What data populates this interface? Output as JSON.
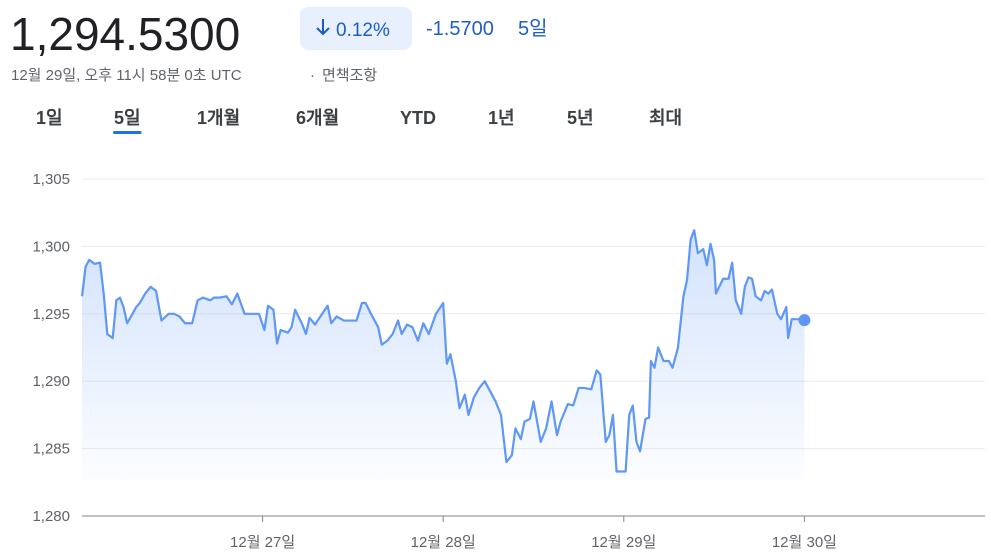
{
  "header": {
    "price": "1,294.5300",
    "change_pct": "0.12%",
    "change": "-1.5700",
    "period": "5일",
    "timestamp": "12월 29일, 오후 11시 58분 0초 UTC",
    "separator": "·",
    "disclaimer": "면책조항"
  },
  "tabs": [
    "1일",
    "5일",
    "1개월",
    "6개월",
    "YTD",
    "1년",
    "5년",
    "최대"
  ],
  "selected_tab": 1,
  "chart_data": {
    "type": "line",
    "color": "#5e97f6",
    "grid": true,
    "xlim": [
      26,
      31
    ],
    "xticks": [
      {
        "value": 27,
        "label": "12월 27일"
      },
      {
        "value": 28,
        "label": "12월 28일"
      },
      {
        "value": 29,
        "label": "12월 29일"
      },
      {
        "value": 30,
        "label": "12월 30일"
      }
    ],
    "ylim": [
      1280,
      1305
    ],
    "yticks": [
      {
        "value": 1280,
        "label": "1,280"
      },
      {
        "value": 1285,
        "label": "1,285"
      },
      {
        "value": 1290,
        "label": "1,290"
      },
      {
        "value": 1295,
        "label": "1,295"
      },
      {
        "value": 1300,
        "label": "1,300"
      },
      {
        "value": 1305,
        "label": "1,305"
      }
    ],
    "x": [
      26.0,
      26.02,
      26.04,
      26.07,
      26.1,
      26.12,
      26.14,
      26.17,
      26.19,
      26.21,
      26.23,
      26.25,
      26.28,
      26.3,
      26.32,
      26.35,
      26.38,
      26.41,
      26.44,
      26.48,
      26.51,
      26.54,
      26.57,
      26.61,
      26.64,
      26.67,
      26.71,
      26.73,
      26.76,
      26.8,
      26.83,
      26.86,
      26.9,
      26.93,
      26.98,
      27.01,
      27.03,
      27.06,
      27.08,
      27.1,
      27.14,
      27.16,
      27.18,
      27.22,
      27.24,
      27.26,
      27.29,
      27.33,
      27.36,
      27.38,
      27.41,
      27.45,
      27.48,
      27.52,
      27.55,
      27.57,
      27.6,
      27.64,
      27.66,
      27.69,
      27.72,
      27.75,
      27.77,
      27.8,
      27.83,
      27.86,
      27.89,
      27.92,
      27.96,
      28.0,
      28.02,
      28.04,
      28.07,
      28.09,
      28.12,
      28.14,
      28.17,
      28.2,
      28.23,
      28.25,
      28.29,
      28.32,
      28.35,
      28.38,
      28.4,
      28.43,
      28.45,
      28.48,
      28.5,
      28.52,
      28.54,
      28.57,
      28.6,
      28.63,
      28.65,
      28.69,
      28.72,
      28.75,
      28.78,
      28.82,
      28.85,
      28.87,
      28.9,
      28.92,
      28.94,
      28.96,
      29.01,
      29.03,
      29.05,
      29.07,
      29.09,
      29.12,
      29.14,
      29.15,
      29.17,
      29.19,
      29.22,
      29.25,
      29.27,
      29.3,
      29.33,
      29.35,
      29.37,
      29.39,
      29.41,
      29.44,
      29.46,
      29.48,
      29.5,
      29.51,
      29.55,
      29.58,
      29.6,
      29.62,
      29.65,
      29.67,
      29.69,
      29.71,
      29.73,
      29.76,
      29.78,
      29.8,
      29.82,
      29.85,
      29.87,
      29.89,
      29.9,
      29.91,
      29.93,
      29.97,
      30.0
    ],
    "values": [
      1296.3,
      1298.5,
      1299,
      1298.7,
      1298.8,
      1296.5,
      1293.5,
      1293.2,
      1296,
      1296.2,
      1295.5,
      1294.3,
      1295,
      1295.5,
      1295.8,
      1296.5,
      1297,
      1296.7,
      1294.5,
      1295,
      1295,
      1294.8,
      1294.3,
      1294.3,
      1296,
      1296.2,
      1296,
      1296.2,
      1296.2,
      1296.3,
      1295.7,
      1296.5,
      1295,
      1295,
      1295,
      1293.8,
      1295.6,
      1295.3,
      1292.8,
      1293.8,
      1293.6,
      1294,
      1295.3,
      1294.2,
      1293.5,
      1294.7,
      1294.2,
      1295,
      1295.6,
      1294.3,
      1294.8,
      1294.5,
      1294.5,
      1294.5,
      1295.8,
      1295.8,
      1295,
      1294,
      1292.7,
      1293,
      1293.5,
      1294.5,
      1293.5,
      1294.2,
      1294,
      1293,
      1294.3,
      1293.5,
      1295,
      1295.8,
      1291.3,
      1292,
      1290,
      1288,
      1289,
      1287.5,
      1288.8,
      1289.5,
      1290,
      1289.5,
      1288.5,
      1287.5,
      1284,
      1284.5,
      1286.5,
      1285.7,
      1287,
      1287.2,
      1288.5,
      1287,
      1285.5,
      1286.5,
      1288.5,
      1286,
      1287,
      1288.3,
      1288.2,
      1289.5,
      1289.5,
      1289.4,
      1290.8,
      1290.5,
      1285.5,
      1286,
      1287.5,
      1283.3,
      1283.3,
      1287.5,
      1288.2,
      1285.5,
      1284.8,
      1287.2,
      1287.3,
      1291.5,
      1291,
      1292.5,
      1291.5,
      1291.5,
      1291,
      1292.5,
      1296.3,
      1297.5,
      1300.5,
      1301.2,
      1299.5,
      1299.8,
      1298.6,
      1300.2,
      1299,
      1296.5,
      1297.6,
      1297.6,
      1298.8,
      1296,
      1295,
      1297,
      1297.7,
      1297.6,
      1296.3,
      1296,
      1296.7,
      1296.5,
      1296.8,
      1295,
      1294.6,
      1295.2,
      1295.5,
      1293.2,
      1294.6,
      1294.6,
      1294.53
    ]
  }
}
